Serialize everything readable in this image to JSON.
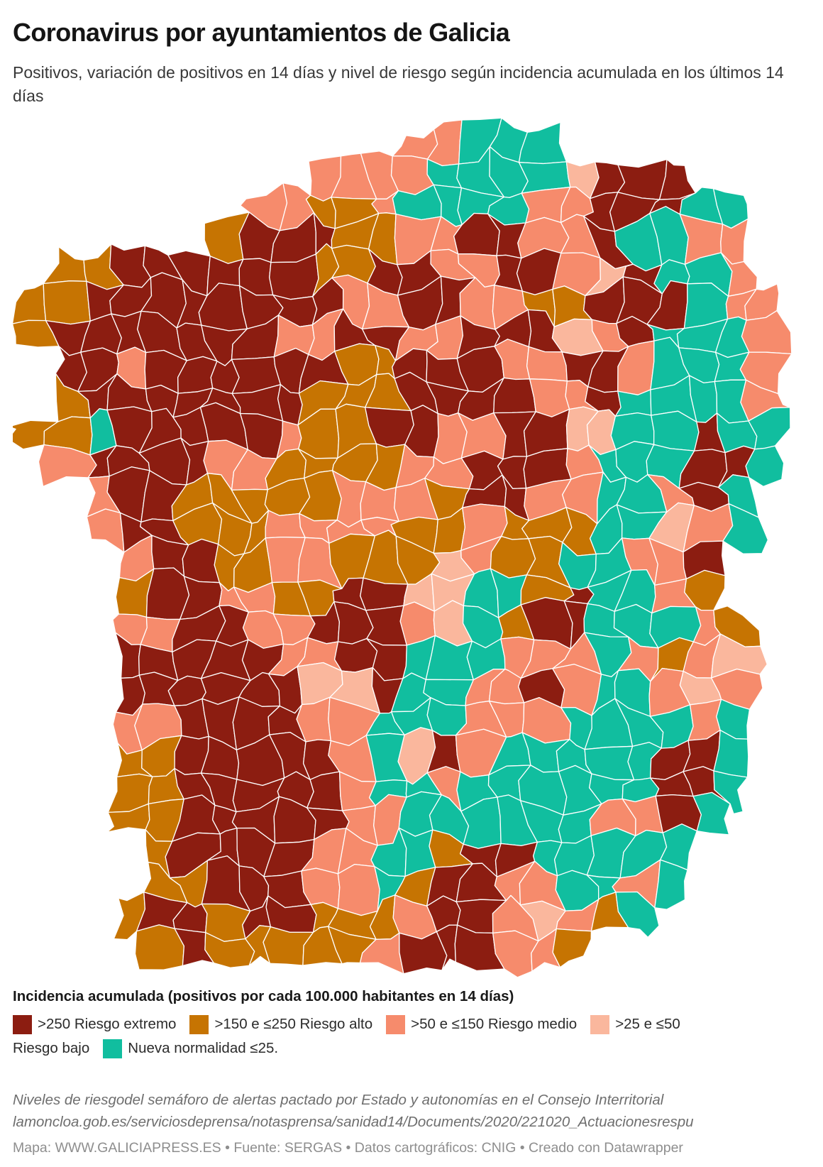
{
  "header": {
    "title": "Coronavirus por ayuntamientos de Galicia",
    "subtitle": "Positivos, variación de positivos en 14 días y nivel de riesgo según incidencia acumulada en los últimos 14 días"
  },
  "legend": {
    "title": "Incidencia acumulada (positivos por cada 100.000 habitantes en 14 días)",
    "items": [
      {
        "key": "E",
        "label": ">250 Riesgo extremo",
        "color": "#8C1D11"
      },
      {
        "key": "A",
        "label": ">150 e ≤250 Riesgo alto",
        "color": "#C67402"
      },
      {
        "key": "M",
        "label": ">50 e ≤150 Riesgo medio",
        "color": "#F68B6C"
      },
      {
        "key": "B",
        "label": ">25 e ≤50",
        "label2": "Riesgo bajo",
        "color": "#FAB79D"
      },
      {
        "key": "N",
        "label": "Nueva normalidad ≤25.",
        "color": "#11BE9F"
      }
    ]
  },
  "footer": {
    "note": "Niveles de riesgodel semáforo de alertas pactado por Estado y autonomías en el Consejo Interritorial lamoncloa.gob.es/serviciosdeprensa/notasprensa/sanidad14/Documents/2020/221020_Actuacionesrespu",
    "credit": "Mapa: WWW.GALICIAPRESS.ES • Fuente: SERGAS • Datos cartográficos: CNIG • Creado con Datawrapper"
  },
  "chart_data": {
    "type": "choropleth",
    "region": "Galicia (ayuntamientos)",
    "legend_position": "bottom",
    "border_color": "#ffffff",
    "palette": {
      "E": "#8C1D11",
      "A": "#C67402",
      "M": "#F68B6C",
      "B": "#FAB79D",
      "N": "#11BE9F"
    },
    "categories": [
      ">250 Riesgo extremo",
      ">150 e ≤250 Riesgo alto",
      ">50 e ≤150 Riesgo medio",
      ">25 e ≤50 Riesgo bajo",
      "Nueva normalidad ≤25."
    ],
    "grid_legend": "rows of category keys per map cell; E=riesgo extremo, A=alto, M=medio, B=bajo, N=nueva normalidad, .=sea/outside",
    "grid": [
      "............MMNNN.......",
      ".........MMMMNNNNBEEE...",
      ".......MMAAMNNNNMMEEENN.",
      "......AEEEAAMMEEMMENNMM.",
      ".AAEEEEEEAAEEMMEEMBENNM.",
      "AAEEEEEEEEMMEEMMAAEEENMM",
      "AEEEEEEEMMEEMMEEEBMENNNM",
      ".EEMEEEEEEAAEEEMMEEMNNNM",
      ".AEEEEEEEAAAEEEEMMENNNNM",
      "AANEEEEEMAAEEMMEEBBNNENN",
      ".MEEEEMMAAAAMMEEEMNNNEEN",
      "..MEEAAAAAMMMAEEMMNNMEN.",
      "..MEEAAAMMMMAAMAAANNBMN.",
      "...MEEAAMMAAABMAANNMME..",
      "...AEEMMAAEEBBNNAENNMA..",
      "...MMEEMMEEEMBNAEENNNMA.",
      "...EEEEEMMEENNNMMMNMAMB.",
      "...EEEEEEBBENNMMEMNNMBM.",
      "...MMEEEEMMNNNMMMNNNNMN.",
      "...AAEEEEEMNBEMNNNNNEEN.",
      "...AAEEEEEMNNMNNNNNNEEN.",
      "...AAEEEEEMMNNNNNNMMEN..",
      "....AEEEEMMNNAEENNNNN...",
      "....AAEEEMMNAEEMMNNMN...",
      "...AEEAEEAAAMEEMBMAN....",
      "....AEAAAAAMEEEMMA......"
    ]
  }
}
